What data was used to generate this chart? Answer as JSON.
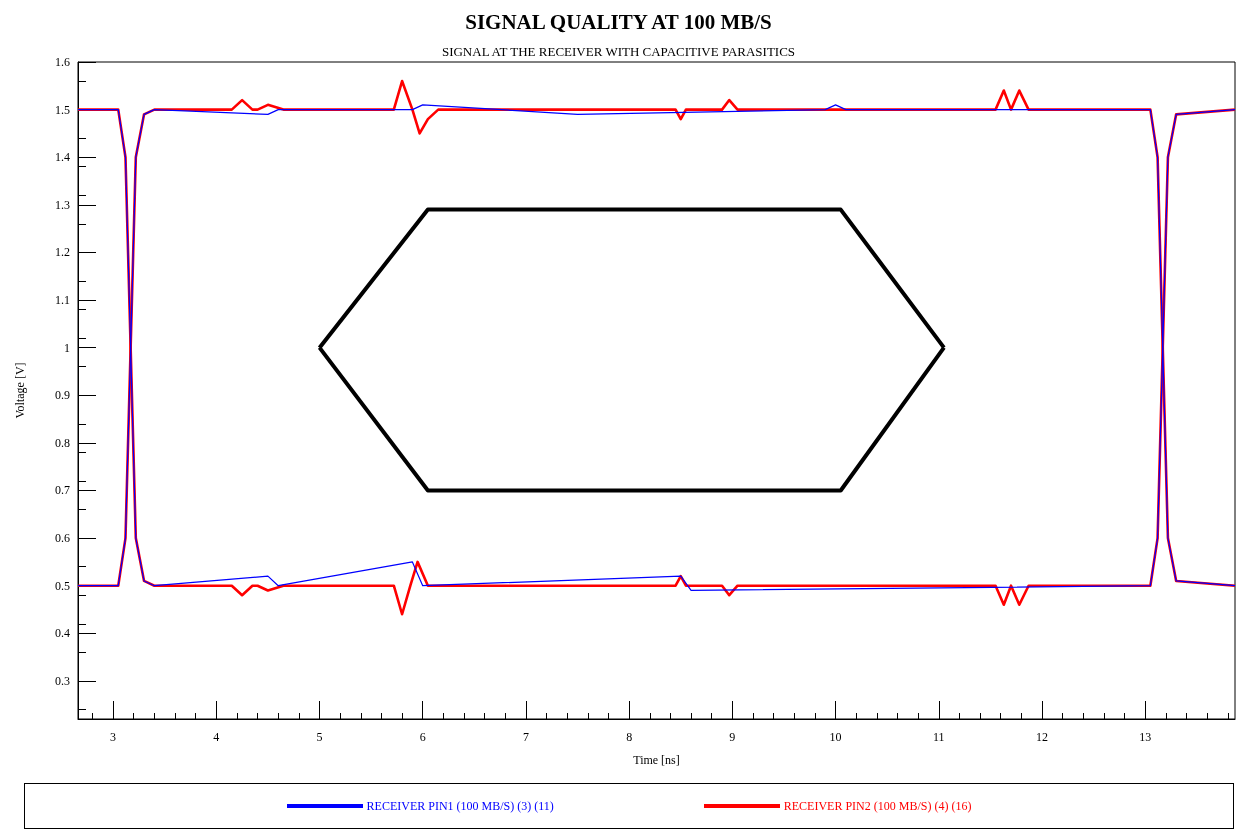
{
  "chart_data": {
    "type": "line",
    "title": "SIGNAL QUALITY AT 100 MB/S",
    "subtitle": "SIGNAL AT THE RECEIVER WITH CAPACITIVE PARASITICS",
    "xlabel": "Time [ns]",
    "ylabel": "Voltage [V]",
    "xlim": [
      2.66,
      13.87
    ],
    "xticks": [
      3,
      4,
      5,
      6,
      7,
      8,
      9,
      10,
      11,
      12,
      13
    ],
    "ylim": [
      0.22,
      1.6
    ],
    "yticks": [
      0.3,
      0.4,
      0.5,
      0.6,
      0.7,
      0.8,
      0.9,
      1,
      1.1,
      1.2,
      1.3,
      1.4,
      1.5,
      1.6
    ],
    "grid": false,
    "legend": "bottom",
    "marker": "none",
    "line_style": "solid",
    "series": [
      {
        "name": "RECEIVER PIN1 (100 MB/S) (3) (11)",
        "color": "#0000ff",
        "x": [
          2.66,
          3.05,
          3.12,
          3.17,
          3.22,
          3.3,
          3.4,
          4.5,
          4.6,
          5.9,
          6.0,
          7.5,
          9.9,
          10.0,
          10.1,
          13.05,
          13.12,
          13.17,
          13.22,
          13.3,
          13.87
        ],
        "values": [
          0.5,
          0.5,
          0.6,
          1.0,
          1.4,
          1.49,
          1.5,
          1.49,
          1.5,
          1.5,
          1.51,
          1.49,
          1.5,
          1.51,
          1.5,
          1.5,
          1.4,
          1.0,
          0.6,
          0.51,
          0.5
        ]
      },
      {
        "color": "#0000ff",
        "x": [
          2.66,
          3.05,
          3.12,
          3.17,
          3.22,
          3.3,
          3.4,
          4.5,
          4.6,
          5.9,
          6.0,
          8.5,
          8.6,
          13.05,
          13.12,
          13.17,
          13.22,
          13.3,
          13.87
        ],
        "values": [
          1.5,
          1.5,
          1.4,
          1.0,
          0.6,
          0.51,
          0.5,
          0.52,
          0.5,
          0.55,
          0.5,
          0.52,
          0.49,
          0.5,
          0.6,
          1.0,
          1.4,
          1.49,
          1.5
        ]
      },
      {
        "name": "RECEIVER PIN2 (100 MB/S) (4) (16)",
        "color": "#ff0000",
        "x": [
          2.66,
          3.05,
          3.12,
          3.17,
          3.22,
          3.3,
          3.4,
          4.15,
          4.25,
          4.35,
          4.4,
          4.5,
          4.65,
          5.72,
          5.8,
          5.9,
          5.97,
          6.05,
          6.15,
          8.45,
          8.5,
          8.55,
          8.9,
          8.97,
          9.05,
          11.55,
          11.63,
          11.7,
          11.78,
          11.87,
          13.05,
          13.12,
          13.17,
          13.22,
          13.3,
          13.87
        ],
        "values": [
          0.5,
          0.5,
          0.6,
          1.0,
          1.4,
          1.49,
          1.5,
          1.5,
          1.52,
          1.5,
          1.5,
          1.51,
          1.5,
          1.5,
          1.56,
          1.5,
          1.45,
          1.48,
          1.5,
          1.5,
          1.48,
          1.5,
          1.5,
          1.52,
          1.5,
          1.5,
          1.54,
          1.5,
          1.54,
          1.5,
          1.5,
          1.4,
          1.0,
          0.6,
          0.51,
          0.5
        ]
      },
      {
        "color": "#ff0000",
        "x": [
          2.66,
          3.05,
          3.12,
          3.17,
          3.22,
          3.3,
          3.4,
          4.15,
          4.25,
          4.35,
          4.4,
          4.5,
          4.65,
          5.72,
          5.8,
          5.88,
          5.95,
          6.05,
          8.45,
          8.5,
          8.55,
          8.9,
          8.97,
          9.05,
          11.55,
          11.63,
          11.7,
          11.78,
          11.87,
          13.05,
          13.12,
          13.17,
          13.22,
          13.3,
          13.87
        ],
        "values": [
          1.5,
          1.5,
          1.4,
          1.0,
          0.6,
          0.51,
          0.5,
          0.5,
          0.48,
          0.5,
          0.5,
          0.49,
          0.5,
          0.5,
          0.44,
          0.5,
          0.55,
          0.5,
          0.5,
          0.52,
          0.5,
          0.5,
          0.48,
          0.5,
          0.5,
          0.46,
          0.5,
          0.46,
          0.5,
          0.5,
          0.6,
          1.0,
          1.4,
          1.49,
          1.5
        ]
      },
      {
        "color": "#000000",
        "x": [
          5.0,
          6.05,
          10.05,
          11.05
        ],
        "values": [
          1.0,
          1.29,
          1.29,
          1.0
        ]
      },
      {
        "color": "#000000",
        "x": [
          5.0,
          6.05,
          10.05,
          11.05
        ],
        "values": [
          1.0,
          0.7,
          0.7,
          1.0
        ]
      }
    ]
  }
}
